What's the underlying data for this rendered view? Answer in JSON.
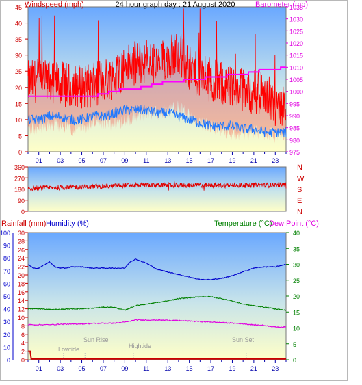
{
  "title": "24 hour graph day : 21 August 2020",
  "colors": {
    "wind": "#ff0000",
    "gust_fill": "#ff0000",
    "wind_avg": "#1e78ff",
    "barometer": "#ff00ff",
    "direction": "#e00000",
    "humidity": "#0000cc",
    "temperature": "#008000",
    "dewpoint": "#e000e0",
    "rainfall": "#cc0000",
    "axis_blue": "#0000aa",
    "sky_top": "#6aa8ff",
    "sky_bottom": "#ffffc8"
  },
  "panel1": {
    "left_label": "Windspeed (mph)",
    "right_label": "Barometer (mb)",
    "left_ticks": [
      "0",
      "5",
      "10",
      "15",
      "20",
      "25",
      "30",
      "35",
      "40",
      "45"
    ],
    "right_ticks": [
      "975",
      "980",
      "985",
      "990",
      "995",
      "1000",
      "1005",
      "1010",
      "1015",
      "1020",
      "1025",
      "1030",
      "1035"
    ],
    "x_ticks": [
      "01",
      "03",
      "05",
      "07",
      "09",
      "11",
      "13",
      "15",
      "17",
      "19",
      "21",
      "23"
    ]
  },
  "panel2": {
    "left_ticks": [
      "0",
      "90",
      "180",
      "270",
      "360"
    ],
    "compass": [
      "N",
      "W",
      "S",
      "E",
      "N"
    ]
  },
  "panel3": {
    "rain_label": "Rainfall (mm)",
    "humidity_label": "Humidity (%)",
    "temp_label": "Temperature (°C)",
    "dew_label": "Dew Point (°C)",
    "humidity_ticks": [
      "0",
      "10",
      "20",
      "30",
      "40",
      "50",
      "60",
      "70",
      "80",
      "90",
      "100"
    ],
    "rain_ticks": [
      "0",
      "2",
      "4",
      "6",
      "8",
      "10",
      "12",
      "14",
      "16",
      "18",
      "20",
      "22",
      "24",
      "26",
      "28",
      "30"
    ],
    "temp_ticks": [
      "0",
      "5",
      "10",
      "15",
      "20",
      "25",
      "30",
      "35",
      "40"
    ],
    "x_ticks": [
      "01",
      "03",
      "05",
      "07",
      "09",
      "11",
      "13",
      "15",
      "17",
      "19",
      "21",
      "23"
    ],
    "annotations": [
      "Lowtide",
      "Sun Rise",
      "Hightide",
      "Sun Set"
    ]
  },
  "chart_data": [
    {
      "type": "line",
      "title": "24 hour graph day : 21 August 2020",
      "xlabel": "",
      "ylabel": "Windspeed (mph)",
      "y2label": "Barometer (mb)",
      "xlim": [
        0,
        24
      ],
      "ylim": [
        0,
        45
      ],
      "y2lim": [
        975,
        1035
      ],
      "series": [
        {
          "name": "Windspeed (mph)",
          "axis": "left",
          "style": "gust",
          "x": [
            0,
            1,
            2,
            3,
            4,
            5,
            6,
            7,
            8,
            9,
            10,
            11,
            12,
            13,
            14,
            15,
            16,
            17,
            18,
            19,
            20,
            21,
            22,
            23,
            24
          ],
          "values": [
            20,
            21,
            20,
            20,
            19,
            19,
            19,
            21,
            22,
            25,
            26,
            27,
            25,
            28,
            30,
            24,
            22,
            21,
            20,
            18,
            18,
            17,
            17,
            13,
            14
          ],
          "min_values": [
            7,
            8,
            9,
            8,
            7,
            8,
            9,
            9,
            9,
            10,
            11,
            12,
            12,
            13,
            14,
            11,
            9,
            8,
            7,
            6,
            6,
            6,
            6,
            5,
            6
          ]
        },
        {
          "name": "Windspeed (mph)",
          "axis": "left",
          "style": "avg",
          "x": [
            0,
            1,
            2,
            3,
            4,
            5,
            6,
            7,
            8,
            9,
            10,
            11,
            12,
            13,
            14,
            15,
            16,
            17,
            18,
            19,
            20,
            21,
            22,
            23,
            24
          ],
          "values": [
            10,
            10,
            11,
            11,
            10,
            10,
            11,
            11,
            12,
            13,
            13,
            13,
            12,
            12,
            11,
            10,
            9,
            8,
            8,
            8,
            7,
            7,
            6,
            6,
            6
          ]
        },
        {
          "name": "Barometer (mb)",
          "axis": "right",
          "x": [
            0,
            1,
            2,
            3,
            4,
            5,
            6,
            7,
            8,
            9,
            10,
            11,
            12,
            13,
            14,
            15,
            16,
            17,
            18,
            19,
            20,
            21,
            22,
            23,
            24
          ],
          "values": [
            998,
            998,
            998,
            998,
            998,
            998,
            998,
            999,
            1000,
            1001,
            1001,
            1002,
            1003,
            1004,
            1004,
            1005,
            1005,
            1006,
            1006,
            1007,
            1007,
            1008,
            1009,
            1009,
            1010
          ]
        }
      ]
    },
    {
      "type": "line",
      "ylabel": "",
      "xlim": [
        0,
        24
      ],
      "ylim": [
        0,
        360
      ],
      "series": [
        {
          "name": "",
          "x": [
            0,
            2,
            4,
            6,
            8,
            10,
            12,
            14,
            16,
            18,
            20,
            22,
            24
          ],
          "values": [
            185,
            190,
            195,
            200,
            205,
            215,
            212,
            210,
            212,
            210,
            210,
            212,
            215
          ]
        }
      ]
    },
    {
      "type": "line",
      "xlim": [
        0,
        24
      ],
      "series": [
        {
          "name": "Humidity (%)",
          "axis": "humidity",
          "ylim": [
            0,
            100
          ],
          "x": [
            0,
            0.5,
            1,
            2,
            2.5,
            3,
            3.5,
            4,
            5,
            6,
            7,
            8,
            9,
            9.5,
            10,
            11,
            12,
            13,
            14,
            15,
            16,
            17,
            18,
            19,
            20,
            21,
            22,
            23,
            23.5,
            24
          ],
          "values": [
            75,
            72,
            72,
            77,
            73,
            72,
            72,
            73,
            73,
            72,
            72,
            72,
            72,
            77,
            79,
            76,
            71,
            69,
            67,
            65,
            63,
            63,
            64,
            66,
            69,
            72,
            73,
            73,
            74,
            75
          ]
        },
        {
          "name": "Temperature (°C)",
          "axis": "temperature",
          "ylim": [
            0,
            40
          ],
          "x": [
            0,
            1,
            2,
            3,
            4,
            5,
            6,
            7,
            8,
            9,
            10,
            11,
            12,
            13,
            14,
            15,
            16,
            17,
            18,
            19,
            20,
            21,
            22,
            23,
            24
          ],
          "values": [
            16,
            16,
            15.8,
            15.8,
            16,
            16,
            16.2,
            16.5,
            16.5,
            15.5,
            17,
            17.5,
            18,
            18.5,
            19.2,
            19.5,
            19.8,
            19.8,
            19.2,
            18.5,
            17.5,
            17,
            16.5,
            16,
            15.5
          ]
        },
        {
          "name": "Dew Point (°C)",
          "axis": "temperature",
          "ylim": [
            0,
            40
          ],
          "x": [
            0,
            1,
            2,
            3,
            4,
            5,
            6,
            7,
            8,
            9,
            10,
            11,
            12,
            13,
            14,
            15,
            16,
            17,
            18,
            19,
            20,
            21,
            22,
            23,
            24
          ],
          "values": [
            11,
            11,
            11,
            11.2,
            11.2,
            11.3,
            11.4,
            11.5,
            11.5,
            11.8,
            12.5,
            12.5,
            12.5,
            12.4,
            12.3,
            12.2,
            12,
            11.9,
            11.7,
            11.5,
            11.3,
            11,
            10.8,
            10.3,
            10.3
          ]
        },
        {
          "name": "Rainfall (mm)",
          "axis": "rain",
          "ylim": [
            0,
            30
          ],
          "x": [
            0,
            0.2,
            0.3,
            24
          ],
          "values": [
            2,
            2,
            0.2,
            0.2
          ]
        }
      ]
    }
  ]
}
